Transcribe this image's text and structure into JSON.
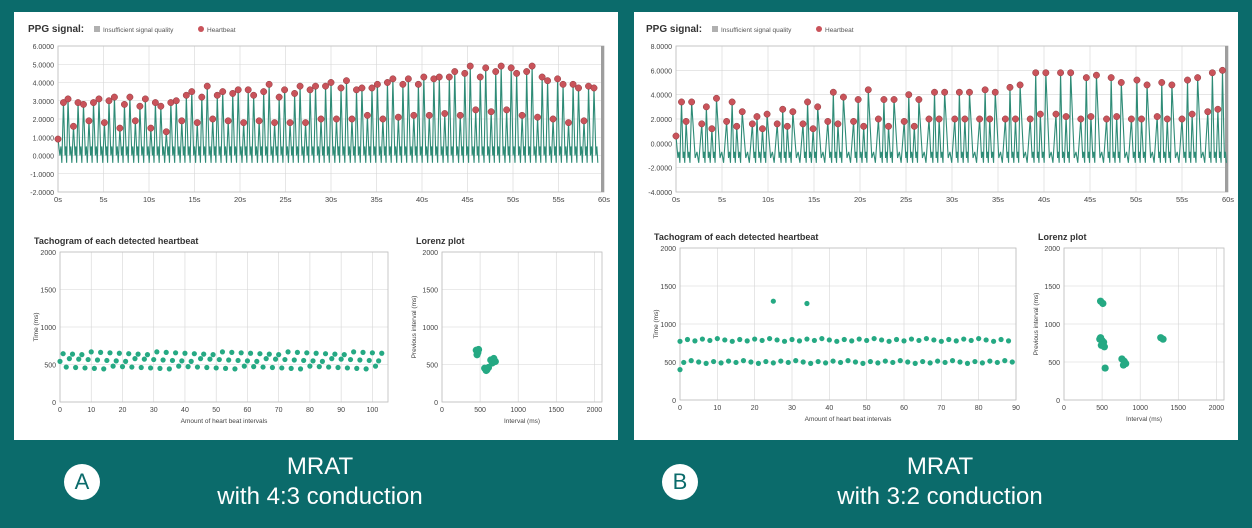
{
  "colors": {
    "background": "#0b6b6b",
    "signal": "#2e8b76",
    "heartbeat": "#c9535a",
    "scatter": "#25a983",
    "grid": "#d6d6d6"
  },
  "panels": [
    {
      "ppg_title": "PPG signal:",
      "legend_quality": "Insufficient signal quality",
      "legend_heartbeat": "Heartbeat",
      "tachogram_title": "Tachogram of each detected heartbeat",
      "lorenz_title": "Lorenz plot",
      "badge": "A",
      "caption_line1": "MRAT",
      "caption_line2": "with 4:3 conduction"
    },
    {
      "ppg_title": "PPG signal:",
      "legend_quality": "Insufficient signal quality",
      "legend_heartbeat": "Heartbeat",
      "tachogram_title": "Tachogram of each detected heartbeat",
      "lorenz_title": "Lorenz plot",
      "badge": "B",
      "caption_line1": "MRAT",
      "caption_line2": "with 3:2 conduction"
    }
  ],
  "chart_data": [
    {
      "panel": "A",
      "type": "line",
      "title": "PPG signal:",
      "legend": [
        "Insufficient signal quality",
        "Heartbeat"
      ],
      "xlim": [
        0,
        60
      ],
      "ylim": [
        -2,
        6
      ],
      "xticks": [
        "0s",
        "5s",
        "10s",
        "15s",
        "20s",
        "25s",
        "30s",
        "35s",
        "40s",
        "45s",
        "50s",
        "55s",
        "60s"
      ],
      "yticks": [
        "6.0000",
        "5.0000",
        "4.0000",
        "3.0000",
        "2.0000",
        "1.0000",
        "0.0000",
        "-1.0000",
        "-2.0000"
      ],
      "heartbeat_peaks": [
        {
          "x": 0.0,
          "y": 0.9
        },
        {
          "x": 0.6,
          "y": 2.9
        },
        {
          "x": 1.1,
          "y": 3.1
        },
        {
          "x": 1.7,
          "y": 1.6
        },
        {
          "x": 2.2,
          "y": 2.9
        },
        {
          "x": 2.8,
          "y": 2.8
        },
        {
          "x": 3.4,
          "y": 1.9
        },
        {
          "x": 3.9,
          "y": 2.9
        },
        {
          "x": 4.5,
          "y": 3.1
        },
        {
          "x": 5.1,
          "y": 1.8
        },
        {
          "x": 5.6,
          "y": 3.0
        },
        {
          "x": 6.2,
          "y": 3.2
        },
        {
          "x": 6.8,
          "y": 1.5
        },
        {
          "x": 7.3,
          "y": 2.8
        },
        {
          "x": 7.9,
          "y": 3.2
        },
        {
          "x": 8.5,
          "y": 1.9
        },
        {
          "x": 9.0,
          "y": 2.7
        },
        {
          "x": 9.6,
          "y": 3.1
        },
        {
          "x": 10.2,
          "y": 1.5
        },
        {
          "x": 10.7,
          "y": 2.9
        },
        {
          "x": 11.3,
          "y": 2.7
        },
        {
          "x": 11.9,
          "y": 1.3
        },
        {
          "x": 12.4,
          "y": 2.9
        },
        {
          "x": 13.0,
          "y": 3.0
        },
        {
          "x": 13.6,
          "y": 1.9
        },
        {
          "x": 14.1,
          "y": 3.3
        },
        {
          "x": 14.7,
          "y": 3.5
        },
        {
          "x": 15.3,
          "y": 1.8
        },
        {
          "x": 15.8,
          "y": 3.2
        },
        {
          "x": 16.4,
          "y": 3.8
        },
        {
          "x": 17.0,
          "y": 2.0
        },
        {
          "x": 17.5,
          "y": 3.3
        },
        {
          "x": 18.1,
          "y": 3.5
        },
        {
          "x": 18.7,
          "y": 1.9
        },
        {
          "x": 19.2,
          "y": 3.4
        },
        {
          "x": 19.8,
          "y": 3.6
        },
        {
          "x": 20.4,
          "y": 1.8
        },
        {
          "x": 20.9,
          "y": 3.6
        },
        {
          "x": 21.5,
          "y": 3.3
        },
        {
          "x": 22.1,
          "y": 1.9
        },
        {
          "x": 22.6,
          "y": 3.5
        },
        {
          "x": 23.2,
          "y": 3.9
        },
        {
          "x": 23.8,
          "y": 1.8
        },
        {
          "x": 24.3,
          "y": 3.2
        },
        {
          "x": 24.9,
          "y": 3.6
        },
        {
          "x": 25.5,
          "y": 1.8
        },
        {
          "x": 26.0,
          "y": 3.4
        },
        {
          "x": 26.6,
          "y": 3.8
        },
        {
          "x": 27.2,
          "y": 1.8
        },
        {
          "x": 27.7,
          "y": 3.6
        },
        {
          "x": 28.3,
          "y": 3.8
        },
        {
          "x": 28.9,
          "y": 2.0
        },
        {
          "x": 29.4,
          "y": 3.8
        },
        {
          "x": 30.0,
          "y": 4.0
        },
        {
          "x": 30.6,
          "y": 2.0
        },
        {
          "x": 31.1,
          "y": 3.7
        },
        {
          "x": 31.7,
          "y": 4.1
        },
        {
          "x": 32.3,
          "y": 2.0
        },
        {
          "x": 32.8,
          "y": 3.6
        },
        {
          "x": 33.4,
          "y": 3.7
        },
        {
          "x": 34.0,
          "y": 2.2
        },
        {
          "x": 34.5,
          "y": 3.7
        },
        {
          "x": 35.1,
          "y": 3.9
        },
        {
          "x": 35.7,
          "y": 2.0
        },
        {
          "x": 36.2,
          "y": 4.0
        },
        {
          "x": 36.8,
          "y": 4.2
        },
        {
          "x": 37.4,
          "y": 2.1
        },
        {
          "x": 37.9,
          "y": 3.9
        },
        {
          "x": 38.5,
          "y": 4.2
        },
        {
          "x": 39.1,
          "y": 2.2
        },
        {
          "x": 39.6,
          "y": 3.9
        },
        {
          "x": 40.2,
          "y": 4.3
        },
        {
          "x": 40.8,
          "y": 2.2
        },
        {
          "x": 41.3,
          "y": 4.2
        },
        {
          "x": 41.9,
          "y": 4.3
        },
        {
          "x": 42.5,
          "y": 2.3
        },
        {
          "x": 43.0,
          "y": 4.3
        },
        {
          "x": 43.6,
          "y": 4.6
        },
        {
          "x": 44.2,
          "y": 2.2
        },
        {
          "x": 44.7,
          "y": 4.5
        },
        {
          "x": 45.3,
          "y": 4.9
        },
        {
          "x": 45.9,
          "y": 2.5
        },
        {
          "x": 46.4,
          "y": 4.3
        },
        {
          "x": 47.0,
          "y": 4.8
        },
        {
          "x": 47.6,
          "y": 2.4
        },
        {
          "x": 48.1,
          "y": 4.6
        },
        {
          "x": 48.7,
          "y": 4.9
        },
        {
          "x": 49.3,
          "y": 2.5
        },
        {
          "x": 49.8,
          "y": 4.8
        },
        {
          "x": 50.4,
          "y": 4.5
        },
        {
          "x": 51.0,
          "y": 2.2
        },
        {
          "x": 51.5,
          "y": 4.6
        },
        {
          "x": 52.1,
          "y": 4.9
        },
        {
          "x": 52.7,
          "y": 2.1
        },
        {
          "x": 53.2,
          "y": 4.3
        },
        {
          "x": 53.8,
          "y": 4.1
        },
        {
          "x": 54.4,
          "y": 2.0
        },
        {
          "x": 54.9,
          "y": 4.2
        },
        {
          "x": 55.5,
          "y": 3.9
        },
        {
          "x": 56.1,
          "y": 1.8
        },
        {
          "x": 56.6,
          "y": 3.9
        },
        {
          "x": 57.2,
          "y": 3.7
        },
        {
          "x": 57.8,
          "y": 1.9
        },
        {
          "x": 58.3,
          "y": 3.8
        },
        {
          "x": 58.9,
          "y": 3.7
        }
      ]
    },
    {
      "panel": "A",
      "type": "scatter",
      "title": "Tachogram of each detected heartbeat",
      "xlabel": "Amount of heart beat intervals",
      "ylabel": "Time (ms)",
      "xlim": [
        0,
        105
      ],
      "ylim": [
        0,
        2000
      ],
      "xticks": [
        "0",
        "10",
        "20",
        "30",
        "40",
        "50",
        "60",
        "70",
        "80",
        "90",
        "100"
      ],
      "yticks": [
        "0",
        "500",
        "1000",
        "1500",
        "2000"
      ],
      "pattern": [
        560,
        650,
        460
      ],
      "count": 104
    },
    {
      "panel": "A",
      "type": "scatter",
      "title": "Lorenz plot",
      "xlabel": "Interval (ms)",
      "ylabel": "Previous interval (ms)",
      "xlim": [
        0,
        2100
      ],
      "ylim": [
        0,
        2000
      ],
      "xticks": [
        "0",
        "500",
        "1000",
        "1500",
        "2000"
      ],
      "yticks": [
        "0",
        "500",
        "1000",
        "1500",
        "2000"
      ],
      "points": [
        {
          "x": 450,
          "y": 690
        },
        {
          "x": 470,
          "y": 660
        },
        {
          "x": 460,
          "y": 630
        },
        {
          "x": 480,
          "y": 700
        },
        {
          "x": 640,
          "y": 560
        },
        {
          "x": 660,
          "y": 520
        },
        {
          "x": 700,
          "y": 540
        },
        {
          "x": 680,
          "y": 580
        },
        {
          "x": 560,
          "y": 450
        },
        {
          "x": 590,
          "y": 430
        },
        {
          "x": 610,
          "y": 460
        },
        {
          "x": 580,
          "y": 420
        }
      ]
    },
    {
      "panel": "B",
      "type": "line",
      "title": "PPG signal:",
      "legend": [
        "Insufficient signal quality",
        "Heartbeat"
      ],
      "xlim": [
        0,
        60
      ],
      "ylim": [
        -4,
        8
      ],
      "xticks": [
        "0s",
        "5s",
        "10s",
        "15s",
        "20s",
        "25s",
        "30s",
        "35s",
        "40s",
        "45s",
        "50s",
        "55s",
        "60s"
      ],
      "yticks": [
        "8.0000",
        "6.0000",
        "4.0000",
        "2.0000",
        "0.0000",
        "-2.0000",
        "-4.0000"
      ],
      "heartbeat_peaks": [
        {
          "x": 0.0,
          "y": 0.6
        },
        {
          "x": 0.6,
          "y": 3.4
        },
        {
          "x": 1.1,
          "y": 1.8
        },
        {
          "x": 1.7,
          "y": 3.4
        },
        {
          "x": 2.8,
          "y": 1.6
        },
        {
          "x": 3.3,
          "y": 3.0
        },
        {
          "x": 3.9,
          "y": 1.2
        },
        {
          "x": 4.4,
          "y": 3.7
        },
        {
          "x": 5.5,
          "y": 1.8
        },
        {
          "x": 6.1,
          "y": 3.4
        },
        {
          "x": 6.6,
          "y": 1.4
        },
        {
          "x": 7.2,
          "y": 2.6
        },
        {
          "x": 8.3,
          "y": 1.6
        },
        {
          "x": 8.8,
          "y": 2.2
        },
        {
          "x": 9.4,
          "y": 1.2
        },
        {
          "x": 9.9,
          "y": 2.4
        },
        {
          "x": 11.0,
          "y": 1.6
        },
        {
          "x": 11.6,
          "y": 2.8
        },
        {
          "x": 12.1,
          "y": 1.4
        },
        {
          "x": 12.7,
          "y": 2.6
        },
        {
          "x": 13.8,
          "y": 1.6
        },
        {
          "x": 14.3,
          "y": 3.4
        },
        {
          "x": 14.9,
          "y": 1.2
        },
        {
          "x": 15.4,
          "y": 3.0
        },
        {
          "x": 16.5,
          "y": 1.8
        },
        {
          "x": 17.1,
          "y": 4.2
        },
        {
          "x": 17.6,
          "y": 1.6
        },
        {
          "x": 18.2,
          "y": 3.8
        },
        {
          "x": 19.3,
          "y": 1.8
        },
        {
          "x": 19.8,
          "y": 3.6
        },
        {
          "x": 20.4,
          "y": 1.4
        },
        {
          "x": 20.9,
          "y": 4.4
        },
        {
          "x": 22.0,
          "y": 2.0
        },
        {
          "x": 22.6,
          "y": 3.6
        },
        {
          "x": 23.1,
          "y": 1.4
        },
        {
          "x": 23.7,
          "y": 3.6
        },
        {
          "x": 24.8,
          "y": 1.8
        },
        {
          "x": 25.3,
          "y": 4.0
        },
        {
          "x": 25.9,
          "y": 1.4
        },
        {
          "x": 26.4,
          "y": 3.6
        },
        {
          "x": 27.5,
          "y": 2.0
        },
        {
          "x": 28.1,
          "y": 4.2
        },
        {
          "x": 28.6,
          "y": 2.0
        },
        {
          "x": 29.2,
          "y": 4.2
        },
        {
          "x": 30.3,
          "y": 2.0
        },
        {
          "x": 30.8,
          "y": 4.2
        },
        {
          "x": 31.4,
          "y": 2.0
        },
        {
          "x": 31.9,
          "y": 4.2
        },
        {
          "x": 33.0,
          "y": 2.0
        },
        {
          "x": 33.6,
          "y": 4.4
        },
        {
          "x": 34.1,
          "y": 2.0
        },
        {
          "x": 34.7,
          "y": 4.2
        },
        {
          "x": 35.8,
          "y": 2.0
        },
        {
          "x": 36.3,
          "y": 4.6
        },
        {
          "x": 36.9,
          "y": 2.0
        },
        {
          "x": 37.4,
          "y": 4.8
        },
        {
          "x": 38.5,
          "y": 2.0
        },
        {
          "x": 39.1,
          "y": 5.8
        },
        {
          "x": 39.6,
          "y": 2.4
        },
        {
          "x": 40.2,
          "y": 5.8
        },
        {
          "x": 41.3,
          "y": 2.4
        },
        {
          "x": 41.8,
          "y": 5.8
        },
        {
          "x": 42.4,
          "y": 2.2
        },
        {
          "x": 42.9,
          "y": 5.8
        },
        {
          "x": 44.0,
          "y": 2.0
        },
        {
          "x": 44.6,
          "y": 5.4
        },
        {
          "x": 45.1,
          "y": 2.2
        },
        {
          "x": 45.7,
          "y": 5.6
        },
        {
          "x": 46.8,
          "y": 2.0
        },
        {
          "x": 47.3,
          "y": 5.4
        },
        {
          "x": 47.9,
          "y": 2.2
        },
        {
          "x": 48.4,
          "y": 5.0
        },
        {
          "x": 49.5,
          "y": 2.0
        },
        {
          "x": 50.1,
          "y": 5.2
        },
        {
          "x": 50.6,
          "y": 2.0
        },
        {
          "x": 51.2,
          "y": 4.8
        },
        {
          "x": 52.3,
          "y": 2.2
        },
        {
          "x": 52.8,
          "y": 5.0
        },
        {
          "x": 53.4,
          "y": 2.0
        },
        {
          "x": 53.9,
          "y": 4.8
        },
        {
          "x": 55.0,
          "y": 2.0
        },
        {
          "x": 55.6,
          "y": 5.2
        },
        {
          "x": 56.1,
          "y": 2.4
        },
        {
          "x": 56.7,
          "y": 5.4
        },
        {
          "x": 57.8,
          "y": 2.6
        },
        {
          "x": 58.3,
          "y": 5.8
        },
        {
          "x": 58.9,
          "y": 2.8
        },
        {
          "x": 59.4,
          "y": 6.0
        }
      ]
    },
    {
      "panel": "B",
      "type": "scatter",
      "title": "Tachogram of each detected heartbeat",
      "xlabel": "Amount of heart beat intervals",
      "ylabel": "Time (ms)",
      "xlim": [
        0,
        90
      ],
      "ylim": [
        0,
        2000
      ],
      "xticks": [
        "0",
        "10",
        "20",
        "30",
        "40",
        "50",
        "60",
        "70",
        "80",
        "90"
      ],
      "yticks": [
        "0",
        "500",
        "1000",
        "1500",
        "2000"
      ],
      "pattern": [
        790,
        500
      ],
      "count": 90,
      "outliers": [
        {
          "x": 25,
          "y": 1300
        },
        {
          "x": 34,
          "y": 1270
        },
        {
          "x": 0,
          "y": 400
        }
      ]
    },
    {
      "panel": "B",
      "type": "scatter",
      "title": "Lorenz plot",
      "xlabel": "Interval (ms)",
      "ylabel": "Previous interval (ms)",
      "xlim": [
        0,
        2100
      ],
      "ylim": [
        0,
        2000
      ],
      "xticks": [
        "0",
        "500",
        "1000",
        "1500",
        "2000"
      ],
      "yticks": [
        "0",
        "500",
        "1000",
        "1500",
        "2000"
      ],
      "points": [
        {
          "x": 480,
          "y": 1300
        },
        {
          "x": 510,
          "y": 1270
        },
        {
          "x": 480,
          "y": 820
        },
        {
          "x": 500,
          "y": 780
        },
        {
          "x": 520,
          "y": 760
        },
        {
          "x": 470,
          "y": 800
        },
        {
          "x": 760,
          "y": 540
        },
        {
          "x": 790,
          "y": 510
        },
        {
          "x": 810,
          "y": 480
        },
        {
          "x": 780,
          "y": 460
        },
        {
          "x": 1270,
          "y": 820
        },
        {
          "x": 1300,
          "y": 800
        },
        {
          "x": 540,
          "y": 420
        },
        {
          "x": 490,
          "y": 720
        },
        {
          "x": 530,
          "y": 700
        }
      ]
    }
  ]
}
